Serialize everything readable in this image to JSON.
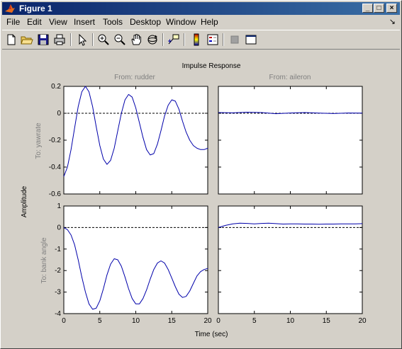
{
  "window": {
    "title": "Figure 1"
  },
  "menu": {
    "items": [
      "File",
      "Edit",
      "View",
      "Insert",
      "Tools",
      "Desktop",
      "Window",
      "Help"
    ]
  },
  "toolbar": {
    "icons": [
      "new-file-icon",
      "open-folder-icon",
      "save-icon",
      "print-icon",
      "arrow-pointer-icon",
      "zoom-in-icon",
      "zoom-out-icon",
      "pan-hand-icon",
      "rotate-3d-icon",
      "data-cursor-icon",
      "colorbar-icon",
      "legend-icon",
      "hide-plot-tools-icon",
      "show-plot-tools-icon"
    ]
  },
  "chart_data": {
    "type": "line",
    "title": "Impulse Response",
    "xlabel": "Time (sec)",
    "ylabel": "Amplitude",
    "inputs": [
      "From: rudder",
      "From: aileron"
    ],
    "outputs": [
      "To: yawrate",
      "To: bank angle"
    ],
    "xlim": [
      0,
      20
    ],
    "xticks": [
      0,
      5,
      10,
      15,
      20
    ],
    "rows": [
      {
        "ylim": [
          -0.6,
          0.2
        ],
        "yticks": [
          0.2,
          0,
          -0.2,
          -0.4,
          -0.6
        ]
      },
      {
        "ylim": [
          -4,
          1
        ],
        "yticks": [
          1,
          0,
          -1,
          -2,
          -3,
          -4
        ]
      }
    ],
    "series": [
      {
        "row": 0,
        "col": 0,
        "x": [
          0,
          0.5,
          1,
          1.5,
          2,
          2.5,
          3,
          3.5,
          4,
          4.5,
          5,
          5.5,
          6,
          6.5,
          7,
          7.5,
          8,
          8.5,
          9,
          9.5,
          10,
          10.5,
          11,
          11.5,
          12,
          12.5,
          13,
          13.5,
          14,
          14.5,
          15,
          15.5,
          16,
          16.5,
          17,
          17.5,
          18,
          18.5,
          19,
          19.5,
          20
        ],
        "y": [
          -0.47,
          -0.4,
          -0.27,
          -0.11,
          0.05,
          0.16,
          0.2,
          0.16,
          0.05,
          -0.1,
          -0.24,
          -0.34,
          -0.38,
          -0.35,
          -0.26,
          -0.13,
          0.0,
          0.1,
          0.14,
          0.12,
          0.04,
          -0.07,
          -0.18,
          -0.27,
          -0.31,
          -0.3,
          -0.23,
          -0.13,
          -0.02,
          0.06,
          0.1,
          0.09,
          0.03,
          -0.06,
          -0.14,
          -0.2,
          -0.24,
          -0.26,
          -0.27,
          -0.27,
          -0.26
        ]
      },
      {
        "row": 0,
        "col": 1,
        "x": [
          0,
          2,
          4,
          6,
          8,
          10,
          12,
          14,
          16,
          18,
          20
        ],
        "y": [
          0.005,
          0.003,
          0.008,
          0.005,
          -0.003,
          0.002,
          0.005,
          0.001,
          -0.002,
          0.002,
          0.001
        ]
      },
      {
        "row": 1,
        "col": 0,
        "x": [
          0,
          0.5,
          1,
          1.5,
          2,
          2.5,
          3,
          3.5,
          4,
          4.5,
          5,
          5.5,
          6,
          6.5,
          7,
          7.5,
          8,
          8.5,
          9,
          9.5,
          10,
          10.5,
          11,
          11.5,
          12,
          12.5,
          13,
          13.5,
          14,
          14.5,
          15,
          15.5,
          16,
          16.5,
          17,
          17.5,
          18,
          18.5,
          19,
          19.5,
          20
        ],
        "y": [
          0,
          -0.1,
          -0.35,
          -0.8,
          -1.5,
          -2.3,
          -3.0,
          -3.55,
          -3.8,
          -3.75,
          -3.4,
          -2.85,
          -2.2,
          -1.7,
          -1.45,
          -1.5,
          -1.8,
          -2.3,
          -2.85,
          -3.3,
          -3.55,
          -3.55,
          -3.3,
          -2.9,
          -2.4,
          -1.95,
          -1.65,
          -1.55,
          -1.65,
          -1.95,
          -2.35,
          -2.75,
          -3.1,
          -3.25,
          -3.2,
          -2.95,
          -2.6,
          -2.25,
          -2.05,
          -1.95,
          -1.9
        ]
      },
      {
        "row": 1,
        "col": 1,
        "x": [
          0,
          1,
          2,
          3,
          4,
          5,
          6,
          7,
          8,
          9,
          10,
          11,
          12,
          13,
          14,
          15,
          16,
          17,
          18,
          19,
          20
        ],
        "y": [
          0,
          0.1,
          0.17,
          0.2,
          0.19,
          0.17,
          0.19,
          0.2,
          0.18,
          0.16,
          0.17,
          0.17,
          0.16,
          0.16,
          0.15,
          0.16,
          0.16,
          0.17,
          0.17,
          0.17,
          0.18
        ]
      }
    ]
  }
}
